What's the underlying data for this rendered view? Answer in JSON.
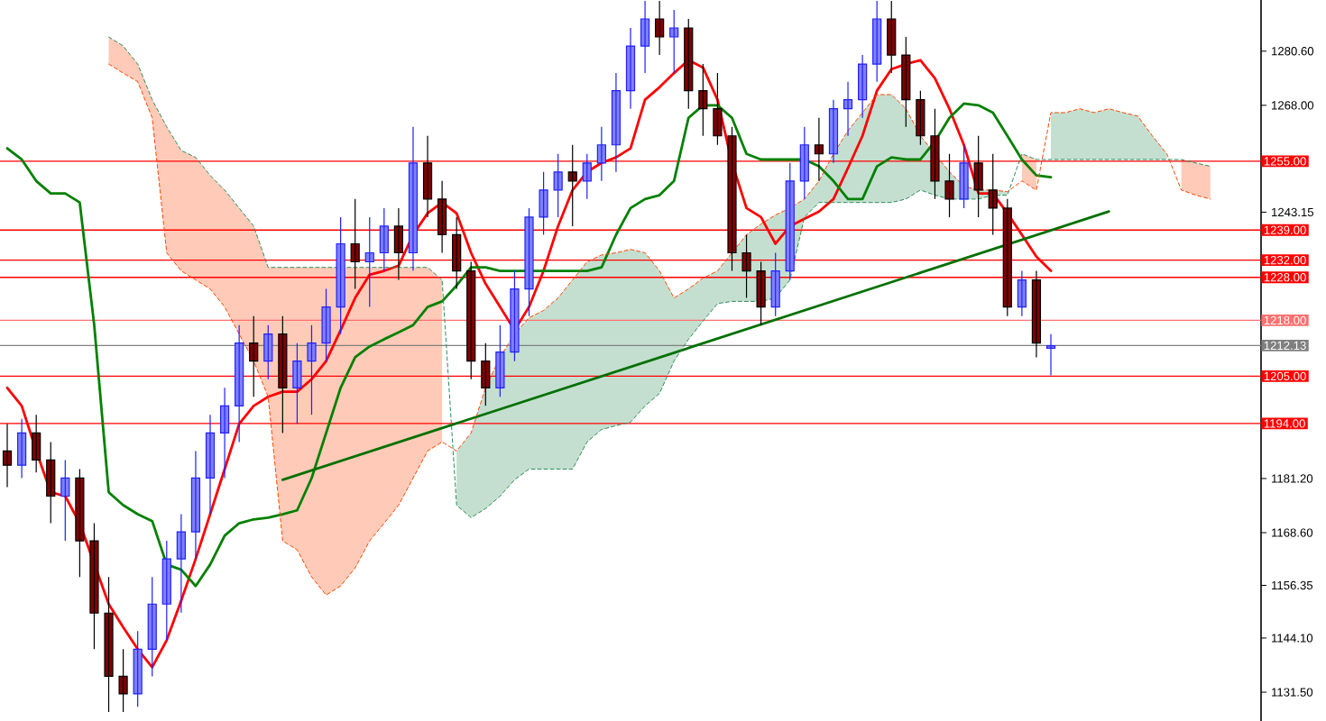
{
  "chart_data": {
    "type": "candlestick",
    "categories": [
      null,
      null,
      null,
      null,
      null,
      null,
      null,
      null,
      null,
      null,
      null,
      null,
      null,
      null,
      null,
      null,
      null,
      null,
      null,
      null,
      null,
      null,
      null,
      null,
      null,
      null,
      null,
      null,
      null,
      null,
      null,
      null,
      null,
      null,
      null,
      null,
      null,
      null,
      null,
      null,
      null,
      null,
      null,
      null,
      null,
      null,
      null,
      null,
      null,
      null,
      null,
      null,
      null,
      null,
      null,
      null,
      null,
      null,
      null,
      null,
      null,
      null,
      null,
      null,
      null,
      null,
      null,
      null,
      null,
      null,
      null,
      null,
      null,
      null,
      null,
      null,
      null,
      null,
      null,
      null,
      null,
      null,
      null,
      null,
      null,
      null,
      null
    ],
    "ohlc": [
      [
        1187.6,
        1193.9,
        1179.2,
        1184.3
      ],
      [
        1184.3,
        1195.1,
        1181.3,
        1191.8
      ],
      [
        1191.8,
        1196.0,
        1182.6,
        1185.5
      ],
      [
        1185.5,
        1189.7,
        1170.8,
        1177.1
      ],
      [
        1177.1,
        1185.5,
        1166.7,
        1181.3
      ],
      [
        1181.3,
        1183.4,
        1158.3,
        1166.7
      ],
      [
        1166.7,
        1170.8,
        1141.5,
        1149.9
      ],
      [
        1149.9,
        1158.3,
        1126.9,
        1135.2
      ],
      [
        1135.2,
        1141.5,
        1126.9,
        1131.1
      ],
      [
        1131.1,
        1145.7,
        1128.1,
        1141.5
      ],
      [
        1141.5,
        1158.3,
        1135.2,
        1152.0
      ],
      [
        1152.0,
        1166.7,
        1143.6,
        1162.5
      ],
      [
        1162.5,
        1172.9,
        1150.0,
        1168.8
      ],
      [
        1168.8,
        1187.6,
        1162.5,
        1181.3
      ],
      [
        1181.3,
        1196.0,
        1172.9,
        1191.8
      ],
      [
        1191.8,
        1202.3,
        1181.3,
        1198.1
      ],
      [
        1198.1,
        1216.9,
        1189.7,
        1212.7
      ],
      [
        1212.7,
        1219.0,
        1200.2,
        1208.5
      ],
      [
        1208.5,
        1216.9,
        1204.3,
        1214.8
      ],
      [
        1214.8,
        1219.0,
        1191.8,
        1202.3
      ],
      [
        1202.3,
        1212.7,
        1193.9,
        1208.5
      ],
      [
        1208.5,
        1216.9,
        1196.0,
        1212.7
      ],
      [
        1212.7,
        1225.3,
        1208.5,
        1221.1
      ],
      [
        1221.1,
        1242.0,
        1214.8,
        1235.8
      ],
      [
        1235.8,
        1246.2,
        1225.3,
        1231.6
      ],
      [
        1231.6,
        1242.0,
        1221.1,
        1233.7
      ],
      [
        1233.7,
        1244.1,
        1229.5,
        1239.9
      ],
      [
        1239.9,
        1244.1,
        1227.4,
        1233.7
      ],
      [
        1233.7,
        1263.0,
        1229.5,
        1254.6
      ],
      [
        1254.6,
        1260.9,
        1242.0,
        1246.2
      ],
      [
        1246.2,
        1250.4,
        1233.7,
        1237.9
      ],
      [
        1237.9,
        1242.0,
        1225.3,
        1229.5
      ],
      [
        1229.5,
        1231.6,
        1204.3,
        1208.5
      ],
      [
        1208.5,
        1212.7,
        1198.1,
        1202.3
      ],
      [
        1202.3,
        1216.9,
        1200.2,
        1210.6
      ],
      [
        1210.6,
        1229.5,
        1208.5,
        1225.3
      ],
      [
        1225.3,
        1244.1,
        1219.0,
        1242.0
      ],
      [
        1242.0,
        1252.5,
        1237.9,
        1248.3
      ],
      [
        1248.3,
        1256.7,
        1242.0,
        1252.5
      ],
      [
        1252.5,
        1258.8,
        1239.9,
        1250.4
      ],
      [
        1250.4,
        1256.7,
        1246.2,
        1254.6
      ],
      [
        1254.6,
        1263.0,
        1250.4,
        1258.8
      ],
      [
        1258.8,
        1275.5,
        1252.5,
        1271.4
      ],
      [
        1271.4,
        1286.0,
        1267.2,
        1281.8
      ],
      [
        1281.8,
        1292.3,
        1275.5,
        1288.1
      ],
      [
        1288.1,
        1292.3,
        1279.7,
        1283.9
      ],
      [
        1283.9,
        1290.2,
        1275.5,
        1286.0
      ],
      [
        1286.0,
        1288.1,
        1267.2,
        1271.4
      ],
      [
        1271.4,
        1277.6,
        1260.9,
        1267.2
      ],
      [
        1267.2,
        1275.5,
        1258.8,
        1260.9
      ],
      [
        1260.9,
        1263.0,
        1229.5,
        1233.7
      ],
      [
        1233.7,
        1237.9,
        1223.2,
        1229.5
      ],
      [
        1229.5,
        1231.6,
        1216.9,
        1221.1
      ],
      [
        1221.1,
        1233.7,
        1219.0,
        1229.5
      ],
      [
        1229.5,
        1254.6,
        1227.4,
        1250.4
      ],
      [
        1250.4,
        1263.0,
        1246.2,
        1258.8
      ],
      [
        1258.8,
        1265.1,
        1250.4,
        1256.7
      ],
      [
        1256.7,
        1269.3,
        1254.6,
        1267.2
      ],
      [
        1267.2,
        1273.5,
        1260.9,
        1269.3
      ],
      [
        1269.3,
        1279.7,
        1265.1,
        1277.6
      ],
      [
        1277.6,
        1292.3,
        1273.5,
        1288.1
      ],
      [
        1288.1,
        1292.3,
        1275.5,
        1279.7
      ],
      [
        1279.7,
        1283.9,
        1263.0,
        1269.3
      ],
      [
        1269.3,
        1271.4,
        1258.8,
        1260.9
      ],
      [
        1260.9,
        1267.2,
        1246.2,
        1250.4
      ],
      [
        1250.4,
        1256.7,
        1242.0,
        1246.2
      ],
      [
        1246.2,
        1258.8,
        1244.1,
        1254.6
      ],
      [
        1254.6,
        1260.9,
        1242.0,
        1248.3
      ],
      [
        1248.3,
        1256.7,
        1237.9,
        1244.1
      ],
      [
        1244.1,
        1246.2,
        1219.0,
        1221.1
      ],
      [
        1221.1,
        1229.5,
        1219.0,
        1227.4
      ],
      [
        1227.4,
        1229.5,
        1209.4,
        1212.7
      ],
      [
        1211.5,
        1214.8,
        1205.2,
        1212.1
      ],
      null,
      null,
      null,
      null,
      null,
      null,
      null,
      null,
      null,
      null,
      null,
      null,
      null,
      null
    ],
    "series": [
      {
        "type": "line",
        "color": "#ff4500",
        "line_style": "dashed",
        "lower": [
          null,
          null,
          null,
          null,
          null,
          null,
          null,
          1277.6,
          1275.5,
          1273.5,
          1265.1,
          1233.7,
          1229.5,
          1227.4,
          1225.3,
          1221.1,
          1214.8,
          1208.5,
          1200.2,
          1166.7,
          1164.6,
          1158.3,
          1154.1,
          1156.2,
          1160.4,
          1166.7,
          1170.8,
          1175.0,
          1181.3,
          1187.6,
          1189.7,
          null,
          null,
          null,
          null,
          null,
          null,
          null,
          null,
          null,
          null,
          null,
          null,
          null,
          null,
          null,
          null,
          null,
          null,
          null,
          null,
          null,
          null,
          null,
          null,
          null,
          null,
          null,
          null,
          null,
          null,
          null,
          null,
          null,
          null,
          null,
          null,
          null,
          null,
          null,
          1250.4,
          1248.3,
          null,
          null,
          null,
          null,
          null,
          null,
          null,
          null,
          null,
          1248.3,
          1247.1,
          1246.2,
          null,
          null,
          null
        ],
        "upper": [
          null,
          null,
          null,
          null,
          null,
          null,
          null,
          1283.9,
          1281.8,
          1277.6,
          1269.3,
          1263.0,
          1257.5,
          1255.9,
          1251.7,
          1248.3,
          1244.1,
          1239.9,
          1230.3,
          1230.3,
          1230.3,
          1230.3,
          1230.3,
          1230.3,
          1230.3,
          1230.3,
          1230.3,
          1230.3,
          1230.3,
          1230.3,
          1227.4,
          null,
          null,
          null,
          null,
          null,
          null,
          null,
          null,
          null,
          null,
          null,
          null,
          null,
          null,
          null,
          null,
          null,
          null,
          null,
          null,
          null,
          null,
          null,
          null,
          null,
          null,
          null,
          null,
          null,
          null,
          null,
          null,
          null,
          null,
          null,
          null,
          null,
          null,
          null,
          1256.7,
          1255.4,
          null,
          null,
          null,
          null,
          null,
          null,
          null,
          null,
          null,
          1255.4,
          1254.6,
          1253.8,
          null,
          null,
          null
        ],
        "values": [
          null,
          null,
          null,
          null,
          null,
          null,
          null,
          1277.6,
          1275.5,
          1273.5,
          1265.1,
          1233.7,
          1229.5,
          1227.4,
          1225.3,
          1221.1,
          1214.8,
          1208.5,
          1200.2,
          1166.7,
          1164.6,
          1158.3,
          1154.1,
          1156.2,
          1160.4,
          1166.7,
          1170.8,
          1175.0,
          1181.3,
          1187.6,
          1189.7,
          1187.6,
          1191.8,
          1202.3,
          1209.4,
          1214.8,
          1218.6,
          1220.3,
          1223.2,
          1227.4,
          1231.6,
          1233.2,
          1233.7,
          1234.5,
          1233.7,
          1229.5,
          1223.2,
          1225.3,
          1227.8,
          1229.5,
          1233.7,
          1237.9,
          1240.4,
          1242.5,
          1244.1,
          1246.2,
          1250.4,
          1256.7,
          1262.1,
          1266.3,
          1270.5,
          1270.5,
          1267.2,
          1260.9,
          1256.7,
          1252.5,
          1249.2,
          1248.3,
          1248.3,
          1247.9,
          1250.4,
          1248.3,
          1266.3,
          1266.3,
          1267.2,
          1266.3,
          1267.2,
          1266.3,
          1265.5,
          1260.9,
          1256.7,
          1248.3,
          1247.1,
          1246.2,
          null,
          null,
          null
        ]
      },
      {
        "type": "line",
        "color": "#2e8b57",
        "line_style": "dashed",
        "lower": [
          null,
          null,
          null,
          null,
          null,
          null,
          null,
          null,
          null,
          null,
          null,
          null,
          null,
          null,
          null,
          null,
          null,
          null,
          null,
          null,
          null,
          null,
          null,
          null,
          null,
          null,
          null,
          null,
          null,
          null,
          null,
          1175.0,
          1172.1,
          1174.2,
          1177.1,
          1180.9,
          1183.4,
          1183.4,
          1183.4,
          1183.4,
          1189.7,
          1192.6,
          1193.5,
          1194.3,
          1198.1,
          1201.0,
          1208.5,
          1213.6,
          1217.8,
          1221.9,
          1222.4,
          1222.4,
          1222.4,
          1223.2,
          1227.4,
          1242.0,
          1245.4,
          1245.4,
          1245.4,
          1245.4,
          1245.4,
          1245.4,
          1246.2,
          1248.3,
          1247.1,
          1246.2,
          1246.2,
          1246.2,
          1247.1,
          1247.1,
          null,
          null,
          1255.4,
          1255.4,
          1255.4,
          1255.4,
          1255.4,
          1255.4,
          1255.4,
          1255.4,
          1255.4,
          null,
          null,
          null,
          null,
          null,
          null
        ],
        "upper": [
          null,
          null,
          null,
          null,
          null,
          null,
          null,
          null,
          null,
          null,
          null,
          null,
          null,
          null,
          null,
          null,
          null,
          null,
          null,
          null,
          null,
          null,
          null,
          null,
          null,
          null,
          null,
          null,
          null,
          null,
          null,
          1187.6,
          1191.8,
          1202.3,
          1209.4,
          1214.8,
          1218.6,
          1220.3,
          1223.2,
          1227.4,
          1231.6,
          1233.2,
          1233.7,
          1234.5,
          1233.7,
          1229.5,
          1223.2,
          1225.3,
          1227.8,
          1229.5,
          1233.7,
          1237.9,
          1240.4,
          1242.5,
          1244.1,
          1246.2,
          1250.4,
          1256.7,
          1262.1,
          1266.3,
          1270.5,
          1270.5,
          1267.2,
          1260.9,
          1256.7,
          1252.5,
          1249.2,
          1248.3,
          1248.3,
          1247.9,
          null,
          null,
          1266.3,
          1266.3,
          1267.2,
          1266.3,
          1267.2,
          1266.3,
          1265.5,
          1260.9,
          1256.7,
          null,
          null,
          null,
          null,
          null,
          null
        ],
        "values": [
          null,
          null,
          null,
          null,
          null,
          null,
          null,
          1283.9,
          1281.8,
          1277.6,
          1269.3,
          1263.0,
          1257.5,
          1255.9,
          1251.7,
          1248.3,
          1244.1,
          1239.9,
          1230.3,
          1230.3,
          1230.3,
          1230.3,
          1230.3,
          1230.3,
          1230.3,
          1230.3,
          1230.3,
          1230.3,
          1230.3,
          1230.3,
          1227.4,
          1175.0,
          1172.1,
          1174.2,
          1177.1,
          1180.9,
          1183.4,
          1183.4,
          1183.4,
          1183.4,
          1189.7,
          1192.6,
          1193.5,
          1194.3,
          1198.1,
          1201.0,
          1208.5,
          1213.6,
          1217.8,
          1221.9,
          1222.4,
          1222.4,
          1222.4,
          1223.2,
          1227.4,
          1242.0,
          1245.4,
          1245.4,
          1245.4,
          1245.4,
          1245.4,
          1245.4,
          1246.2,
          1248.3,
          1247.1,
          1246.2,
          1246.2,
          1246.2,
          1247.1,
          1247.1,
          1256.7,
          1255.4,
          1255.4,
          1255.4,
          1255.4,
          1255.4,
          1255.4,
          1255.4,
          1255.4,
          1255.4,
          1255.4,
          1255.4,
          1254.6,
          1253.8,
          null,
          null,
          null
        ]
      },
      {
        "type": "line",
        "color": "#ff0000",
        "values": [
          1202.3,
          1198.1,
          1187.6,
          1178.0,
          1177.1,
          1170.8,
          null,
          1152.0,
          1146.6,
          1141.5,
          1137.3,
          1143.6,
          1152.8,
          1162.5,
          1172.9,
          1183.4,
          1193.9,
          1198.1,
          1200.2,
          1201.4,
          1201.4,
          1204.3,
          1208.5,
          1215.7,
          1223.2,
          1228.6,
          1229.5,
          1230.7,
          1237.9,
          1242.9,
          1245.4,
          1242.9,
          1233.7,
          1226.5,
          1221.1,
          1215.7,
          1221.1,
          1229.5,
          1239.9,
          1248.3,
          1252.5,
          1254.6,
          1255.9,
          1258.0,
          1269.3,
          1272.2,
          1275.5,
          1278.5,
          1276.8,
          1269.3,
          1254.6,
          1244.1,
          1242.0,
          1235.8,
          1239.9,
          1241.6,
          1243.3,
          1246.2,
          1253.4,
          1260.9,
          1271.4,
          1276.4,
          1277.6,
          1278.5,
          1274.3,
          1267.2,
          1258.8,
          1247.5,
          1247.5,
          1242.9,
          1237.9,
          1232.8,
          1229.5,
          null,
          null,
          null,
          null,
          null,
          null,
          null,
          null,
          null,
          null,
          null,
          null,
          null,
          null
        ]
      },
      {
        "type": "line",
        "color": "#008000",
        "values": [
          1258.0,
          1255.4,
          1250.4,
          1247.5,
          1247.5,
          1245.4,
          1216.9,
          1178.0,
          1175.0,
          1172.9,
          1171.3,
          1161.2,
          1160.0,
          1156.2,
          1161.2,
          1167.9,
          1170.8,
          1171.7,
          1172.1,
          1172.9,
          1173.8,
          1181.3,
          1191.8,
          1202.3,
          1209.4,
          1211.9,
          1213.6,
          1215.2,
          1216.9,
          1221.1,
          1222.4,
          1226.1,
          1230.3,
          1230.3,
          1229.5,
          1229.5,
          1229.5,
          1229.5,
          1229.5,
          1229.5,
          1229.5,
          1230.3,
          1237.9,
          1244.1,
          1246.2,
          1247.1,
          1250.4,
          1265.1,
          1268.0,
          1268.0,
          1265.1,
          1256.7,
          1255.4,
          1255.4,
          1255.4,
          1255.4,
          1253.8,
          1250.4,
          1246.2,
          1246.2,
          1253.8,
          1255.9,
          1255.4,
          1255.4,
          1259.6,
          1265.1,
          1268.4,
          1268.0,
          1266.3,
          1260.9,
          1255.4,
          1251.7,
          1251.3,
          null,
          null,
          null,
          null,
          null,
          null,
          null,
          null,
          null,
          null,
          null,
          null,
          null,
          null
        ]
      },
      {
        "type": "line",
        "color": "#007000",
        "values": [
          null,
          null,
          null,
          null,
          null,
          null,
          null,
          null,
          null,
          null,
          null,
          null,
          null,
          null,
          null,
          null,
          null,
          null,
          null,
          1180.9,
          null,
          null,
          null,
          null,
          null,
          null,
          null,
          null,
          null,
          null,
          null,
          null,
          null,
          null,
          null,
          null,
          null,
          null,
          null,
          null,
          null,
          null,
          null,
          null,
          null,
          null,
          null,
          null,
          null,
          null,
          null,
          null,
          null,
          null,
          null,
          null,
          null,
          null,
          null,
          null,
          null,
          null,
          null,
          null,
          null,
          null,
          null,
          null,
          null,
          null,
          null,
          null,
          null,
          null,
          null,
          null,
          1243.3,
          null,
          null,
          null,
          null,
          null,
          null,
          null,
          null,
          null,
          null
        ]
      }
    ],
    "ref_lines": [
      {
        "axis": "y",
        "value": 1255,
        "label": "1255.00",
        "color": "#ff0000"
      },
      {
        "axis": "y",
        "value": 1239,
        "label": "1239.00",
        "color": "#ff0000"
      },
      {
        "axis": "y",
        "value": 1232,
        "label": "1232.00",
        "color": "#ff0000"
      },
      {
        "axis": "y",
        "value": 1228,
        "label": "1228.00",
        "color": "#ff0000"
      },
      {
        "axis": "y",
        "value": 1218,
        "label": "1218.00",
        "color": "#ff7070"
      },
      {
        "axis": "y",
        "value": 1212.13,
        "label": "1212.13",
        "color": "#808080"
      },
      {
        "axis": "y",
        "value": 1205,
        "label": "1205.00",
        "color": "#ff0000"
      },
      {
        "axis": "y",
        "value": 1194,
        "label": "1194.00",
        "color": "#ff0000"
      }
    ],
    "ylim": [
      1124.8,
      1292.5
    ],
    "yticks": [
      {
        "value": 1131.5,
        "label": "1131.50"
      },
      {
        "value": 1144.1,
        "label": "1144.10"
      },
      {
        "value": 1156.35,
        "label": "1156.35"
      },
      {
        "value": 1168.6,
        "label": "1168.60"
      },
      {
        "value": 1181.2,
        "label": "1181.20"
      },
      {
        "value": 1243.15,
        "label": "1243.15"
      },
      {
        "value": 1268,
        "label": "1268.00"
      },
      {
        "value": 1280.6,
        "label": "1280.60"
      }
    ],
    "tick_labels": "y"
  }
}
